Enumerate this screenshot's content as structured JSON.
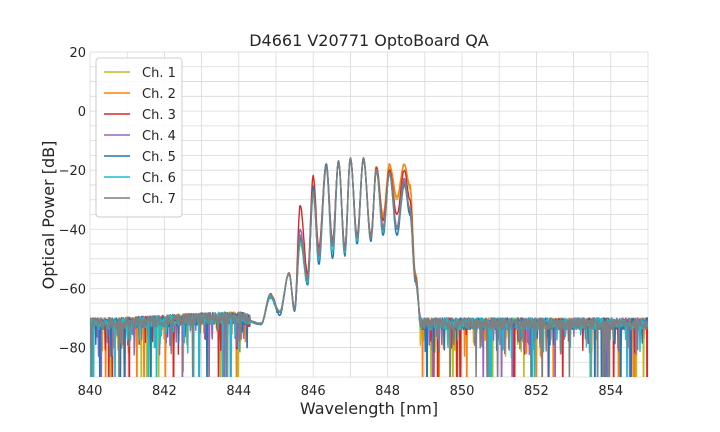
{
  "chart_data": {
    "type": "line",
    "title": "D4661 V20771 OptoBoard QA",
    "xlabel": "Wavelength [nm]",
    "ylabel": "Optical Power [dB]",
    "xlim": [
      840,
      855
    ],
    "ylim": [
      -90,
      20
    ],
    "x_ticks": [
      840,
      842,
      844,
      846,
      848,
      850,
      852,
      854
    ],
    "y_ticks": [
      20,
      0,
      -20,
      -40,
      -60,
      -80
    ],
    "grid": true,
    "legend_position": "top-left",
    "noise_floor_db": -72,
    "series": [
      {
        "name": "Ch. 1",
        "color": "#bcbd22",
        "x": [
          840,
          844,
          844.6,
          844.85,
          845.1,
          845.35,
          845.5,
          845.65,
          845.85,
          846.0,
          846.15,
          846.35,
          846.52,
          846.68,
          846.85,
          847.0,
          847.18,
          847.35,
          847.55,
          847.7,
          847.88,
          848.05,
          848.25,
          848.45,
          848.6,
          848.75,
          848.9,
          855
        ],
        "y": [
          -72,
          -70,
          -72,
          -62,
          -68,
          -55,
          -67,
          -45,
          -57,
          -28,
          -48,
          -19,
          -45,
          -17,
          -47,
          -16,
          -43,
          -17,
          -43,
          -19,
          -36,
          -19,
          -30,
          -18,
          -26,
          -55,
          -72,
          -72
        ]
      },
      {
        "name": "Ch. 2",
        "color": "#ff7f0e",
        "x": [
          840,
          844,
          844.6,
          844.85,
          845.1,
          845.35,
          845.5,
          845.65,
          845.85,
          846.0,
          846.15,
          846.35,
          846.52,
          846.68,
          846.85,
          847.0,
          847.18,
          847.35,
          847.55,
          847.7,
          847.88,
          848.05,
          848.25,
          848.45,
          848.6,
          848.75,
          848.9,
          855
        ],
        "y": [
          -72,
          -70,
          -72,
          -62,
          -68,
          -55,
          -67,
          -43,
          -56,
          -25,
          -47,
          -18,
          -44,
          -17,
          -46,
          -16,
          -42,
          -16,
          -42,
          -19,
          -35,
          -18,
          -29,
          -18,
          -25,
          -55,
          -72,
          -72
        ]
      },
      {
        "name": "Ch. 3",
        "color": "#d62728",
        "x": [
          840,
          844,
          844.6,
          844.85,
          845.1,
          845.35,
          845.5,
          845.65,
          845.85,
          846.0,
          846.15,
          846.35,
          846.52,
          846.68,
          846.85,
          847.0,
          847.18,
          847.35,
          847.55,
          847.7,
          847.88,
          848.05,
          848.25,
          848.45,
          848.6,
          848.75,
          848.9,
          855
        ],
        "y": [
          -72,
          -70,
          -72,
          -62,
          -68,
          -55,
          -67,
          -32,
          -55,
          -22,
          -46,
          -18,
          -44,
          -17,
          -46,
          -16,
          -42,
          -16,
          -42,
          -19,
          -37,
          -20,
          -35,
          -20,
          -30,
          -56,
          -72,
          -72
        ]
      },
      {
        "name": "Ch. 4",
        "color": "#9467bd",
        "x": [
          840,
          844,
          844.6,
          844.85,
          845.1,
          845.35,
          845.5,
          845.65,
          845.85,
          846.0,
          846.15,
          846.35,
          846.52,
          846.68,
          846.85,
          847.0,
          847.18,
          847.35,
          847.55,
          847.7,
          847.88,
          848.05,
          848.25,
          848.45,
          848.6,
          848.75,
          848.9,
          855
        ],
        "y": [
          -72,
          -70,
          -72,
          -63,
          -68,
          -55,
          -67,
          -40,
          -57,
          -26,
          -48,
          -18,
          -45,
          -17,
          -47,
          -16,
          -43,
          -16,
          -43,
          -20,
          -39,
          -21,
          -39,
          -23,
          -34,
          -57,
          -72,
          -72
        ]
      },
      {
        "name": "Ch. 5",
        "color": "#1f77b4",
        "x": [
          840,
          844,
          844.6,
          844.85,
          845.1,
          845.35,
          845.5,
          845.65,
          845.85,
          846.0,
          846.15,
          846.35,
          846.52,
          846.68,
          846.85,
          847.0,
          847.18,
          847.35,
          847.55,
          847.7,
          847.88,
          848.05,
          848.25,
          848.45,
          848.6,
          848.75,
          848.9,
          855
        ],
        "y": [
          -72,
          -70,
          -72,
          -63,
          -69,
          -55,
          -68,
          -43,
          -59,
          -26,
          -52,
          -18,
          -50,
          -17,
          -49,
          -16,
          -45,
          -16,
          -44,
          -20,
          -42,
          -21,
          -42,
          -25,
          -35,
          -58,
          -72,
          -72
        ]
      },
      {
        "name": "Ch. 6",
        "color": "#17becf",
        "x": [
          840,
          844,
          844.6,
          844.85,
          845.1,
          845.35,
          845.5,
          845.65,
          845.85,
          846.0,
          846.15,
          846.35,
          846.52,
          846.68,
          846.85,
          847.0,
          847.18,
          847.35,
          847.55,
          847.7,
          847.88,
          848.05,
          848.25,
          848.45,
          848.6,
          848.75,
          848.9,
          855
        ],
        "y": [
          -72,
          -70,
          -72,
          -63,
          -68,
          -55,
          -67,
          -44,
          -58,
          -28,
          -50,
          -19,
          -48,
          -17,
          -48,
          -16,
          -44,
          -16,
          -43,
          -20,
          -41,
          -21,
          -40,
          -24,
          -33,
          -57,
          -72,
          -72
        ]
      },
      {
        "name": "Ch. 7",
        "color": "#7f7f7f",
        "x": [
          840,
          844,
          844.6,
          844.85,
          845.1,
          845.35,
          845.5,
          845.65,
          845.85,
          846.0,
          846.15,
          846.35,
          846.52,
          846.68,
          846.85,
          847.0,
          847.18,
          847.35,
          847.55,
          847.7,
          847.88,
          848.05,
          848.25,
          848.45,
          848.6,
          848.75,
          848.9,
          855
        ],
        "y": [
          -72,
          -70,
          -72,
          -62,
          -68,
          -55,
          -67,
          -42,
          -57,
          -27,
          -49,
          -19,
          -46,
          -17,
          -47,
          -16,
          -43,
          -16,
          -43,
          -20,
          -40,
          -21,
          -40,
          -24,
          -33,
          -57,
          -72,
          -72
        ]
      }
    ]
  }
}
